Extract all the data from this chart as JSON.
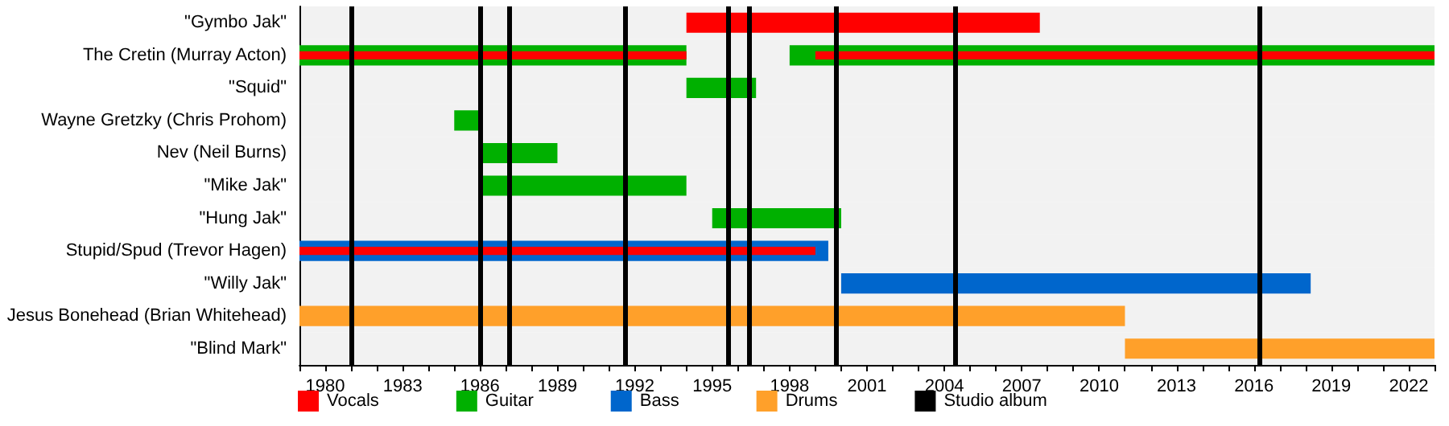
{
  "chart_data": {
    "type": "bar",
    "orientation": "horizontal",
    "categories": [
      "\"Gymbo Jak\"",
      "The Cretin (Murray Acton)",
      "\"Squid\"",
      "Wayne Gretzky (Chris Prohom)",
      "Nev (Neil Burns)",
      "\"Mike Jak\"",
      "\"Hung Jak\"",
      "Stupid/Spud (Trevor Hagen)",
      "\"Willy Jak\"",
      "Jesus Bonehead (Brian Whitehead)",
      "\"Blind Mark\""
    ],
    "series": [
      {
        "name": "Vocals",
        "color": "#ff0000",
        "values": [
          13.7,
          15,
          null,
          null,
          null,
          null,
          null,
          20,
          null,
          null,
          null
        ],
        "base": [
          1994,
          1979,
          null,
          null,
          null,
          null,
          null,
          1979,
          null,
          null,
          null
        ]
      },
      {
        "color": "#ff0000",
        "values": [
          null,
          24,
          null,
          null,
          null,
          null,
          null,
          null,
          null,
          null,
          null
        ],
        "base": [
          null,
          1999,
          null,
          null,
          null,
          null,
          null,
          null,
          null,
          null,
          null
        ]
      },
      {
        "name": "Guitar",
        "color": "#00b000",
        "values": [
          null,
          15,
          2.7,
          1,
          3,
          8,
          5,
          null,
          null,
          null,
          null
        ],
        "base": [
          null,
          1979,
          1994,
          1985,
          1986,
          1986,
          1995,
          null,
          null,
          null,
          null
        ]
      },
      {
        "color": "#00b000",
        "values": [
          null,
          25,
          null,
          null,
          null,
          null,
          null,
          null,
          null,
          null,
          null
        ],
        "base": [
          null,
          1998,
          null,
          null,
          null,
          null,
          null,
          null,
          null,
          null,
          null
        ]
      },
      {
        "name": "Bass",
        "color": "#0066cc",
        "values": [
          null,
          null,
          null,
          null,
          null,
          null,
          null,
          20.5,
          18.2,
          null,
          null
        ],
        "base": [
          null,
          null,
          null,
          null,
          null,
          null,
          null,
          1979,
          2000,
          null,
          null
        ]
      },
      {
        "name": "Drums",
        "color": "#ffa02a",
        "values": [
          null,
          null,
          null,
          null,
          null,
          null,
          null,
          null,
          null,
          32,
          12
        ],
        "base": [
          null,
          null,
          null,
          null,
          null,
          null,
          null,
          null,
          null,
          1979,
          2011
        ]
      }
    ],
    "xlim": [
      1979,
      2023
    ],
    "xticks": [
      {
        "value": 1979,
        "label": null
      },
      1980,
      {
        "value": 1981,
        "label": null
      },
      {
        "value": 1982,
        "label": null
      },
      1983,
      {
        "value": 1984,
        "label": null
      },
      {
        "value": 1985,
        "label": null
      },
      1986,
      {
        "value": 1987,
        "label": null
      },
      {
        "value": 1988,
        "label": null
      },
      1989,
      {
        "value": 1990,
        "label": null
      },
      {
        "value": 1991,
        "label": null
      },
      1992,
      {
        "value": 1993,
        "label": null
      },
      {
        "value": 1994,
        "label": null
      },
      1995,
      {
        "value": 1996,
        "label": null
      },
      {
        "value": 1997,
        "label": null
      },
      1998,
      {
        "value": 1999,
        "label": null
      },
      {
        "value": 2000,
        "label": null
      },
      2001,
      {
        "value": 2002,
        "label": null
      },
      {
        "value": 2003,
        "label": null
      },
      2004,
      {
        "value": 2005,
        "label": null
      },
      {
        "value": 2006,
        "label": null
      },
      2007,
      {
        "value": 2008,
        "label": null
      },
      {
        "value": 2009,
        "label": null
      },
      2010,
      {
        "value": 2011,
        "label": null
      },
      {
        "value": 2012,
        "label": null
      },
      2013,
      {
        "value": 2014,
        "label": null
      },
      {
        "value": 2015,
        "label": null
      },
      2016,
      {
        "value": 2017,
        "label": null
      },
      {
        "value": 2018,
        "label": null
      },
      2019,
      {
        "value": 2020,
        "label": null
      },
      {
        "value": 2021,
        "label": null
      },
      2022,
      {
        "value": 2023,
        "label": null
      }
    ],
    "ref_lines": [
      {
        "axis": "x",
        "value": 1981,
        "color": "#000000",
        "label": "Studio album"
      },
      {
        "axis": "x",
        "value": 1986,
        "color": "#000000"
      },
      {
        "axis": "x",
        "value": 1987.1,
        "color": "#000000"
      },
      {
        "axis": "x",
        "value": 1991.6,
        "color": "#000000"
      },
      {
        "axis": "x",
        "value": 1995.6,
        "color": "#000000"
      },
      {
        "axis": "x",
        "value": 1996.4,
        "color": "#000000"
      },
      {
        "axis": "x",
        "value": 1999.8,
        "color": "#000000"
      },
      {
        "axis": "x",
        "value": 2004.4,
        "color": "#000000"
      },
      {
        "axis": "x",
        "value": 2016.2,
        "color": "#000000"
      }
    ],
    "grid": false,
    "legend": "bottom"
  }
}
